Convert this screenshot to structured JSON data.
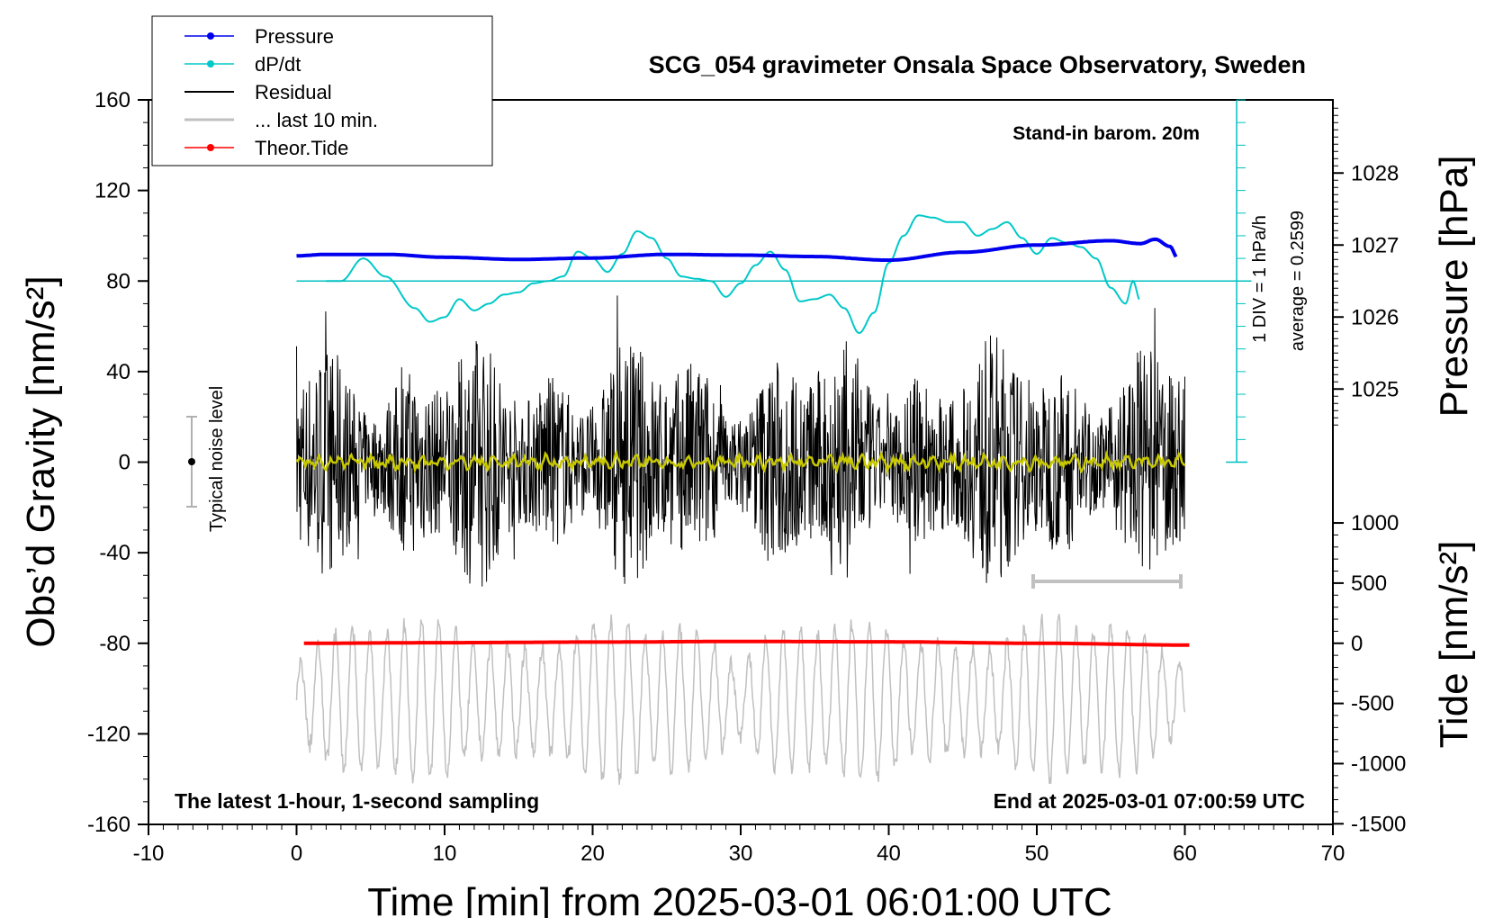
{
  "chart_data": {
    "type": "line",
    "title": "SCG_054 gravimeter Onsala Space Observatory, Sweden",
    "xlabel": "Time [min] from 2025-03-01 06:01:00 UTC",
    "ylabel_left": "Obs’d Gravity [nm/s²]",
    "ylabel_right_top": "Pressure [hPa]",
    "ylabel_right_bottom": "Tide [nm/s²]",
    "xlim": [
      -10,
      70
    ],
    "ylim": [
      -160,
      160
    ],
    "x_ticks": [
      "-10",
      "0",
      "10",
      "20",
      "30",
      "40",
      "50",
      "60",
      "70"
    ],
    "y_ticks": [
      "160",
      "120",
      "80",
      "40",
      "0",
      "-40",
      "-80",
      "-120",
      "-160"
    ],
    "pressure_ticks": [
      "1028",
      "1027",
      "1026",
      "1025"
    ],
    "pressure_lim": [
      1024.0,
      1029.0
    ],
    "tide_ticks": [
      "1000",
      "500",
      "0",
      "-500",
      "-1000",
      "-1500"
    ],
    "tide_lim": [
      -1500,
      1500
    ],
    "legend": [
      "Pressure",
      "dP/dt",
      "Residual",
      "... last 10 min.",
      "Theor.Tide"
    ],
    "annotations": {
      "barometer": "Stand-in barom. 20m",
      "div_scale": "1 DIV = 1 hPa/h",
      "average": "average = 0.2599",
      "noise": "Typical noise level",
      "bottom_left": "The latest 1-hour, 1-second sampling",
      "bottom_right": "End at 2025-03-01 07:00:59 UTC"
    },
    "series": [
      {
        "name": "Pressure",
        "unit": "hPa",
        "color": "#0000ee",
        "x": [
          0,
          2,
          6,
          10,
          15,
          20,
          25,
          30,
          35,
          40,
          45,
          50,
          55,
          57,
          58,
          59,
          59.5
        ],
        "values": [
          1026.85,
          1026.87,
          1026.87,
          1026.83,
          1026.8,
          1026.82,
          1026.87,
          1026.86,
          1026.84,
          1026.79,
          1026.9,
          1027.0,
          1027.06,
          1027.02,
          1027.08,
          1026.98,
          1026.82
        ]
      },
      {
        "name": "dP/dt",
        "unit": "nm/s² display",
        "color": "#00c8c8",
        "x": [
          2,
          3,
          4.5,
          6,
          8,
          9,
          10,
          11,
          12,
          13,
          14,
          15,
          16,
          17,
          18,
          19,
          20,
          21,
          22,
          23,
          24,
          25,
          26,
          27,
          28,
          29,
          30,
          31,
          32,
          33,
          34,
          35,
          36,
          37,
          38,
          39,
          40,
          41,
          42,
          43,
          44,
          45,
          46,
          47,
          48,
          49,
          50,
          51,
          52,
          53,
          54,
          55,
          56,
          56.5,
          57
        ],
        "values": [
          80,
          80,
          90,
          82,
          68,
          62,
          64,
          72,
          67,
          70,
          74,
          75,
          79,
          80,
          82,
          93,
          90,
          84,
          92,
          102,
          99,
          90,
          82,
          81,
          80,
          73,
          79,
          87,
          93,
          85,
          71,
          72,
          74,
          68,
          57,
          66,
          88,
          100,
          109,
          108,
          106,
          106,
          100,
          103,
          106,
          99,
          92,
          99,
          97,
          95,
          90,
          77,
          70,
          80,
          71
        ]
      },
      {
        "name": "Residual",
        "color": "#000000",
        "amplitude_nm_s2": 45
      },
      {
        "name": "... last 10 min.",
        "color": "#c0c0c0",
        "amplitude_nm_s2": 35
      },
      {
        "name": "Theor.Tide",
        "unit": "nm/s²",
        "color": "#ff0000",
        "x": [
          0.5,
          10,
          20,
          30,
          40,
          50,
          60.5
        ],
        "values": [
          0,
          5,
          10,
          15,
          12,
          0,
          -15
        ]
      }
    ]
  },
  "colors": {
    "pressure": "#0000ee",
    "dpdt": "#00c8c8",
    "residual": "#000000",
    "last10": "#c0c0c0",
    "tide": "#ff0000",
    "filtered": "#c8c800"
  }
}
